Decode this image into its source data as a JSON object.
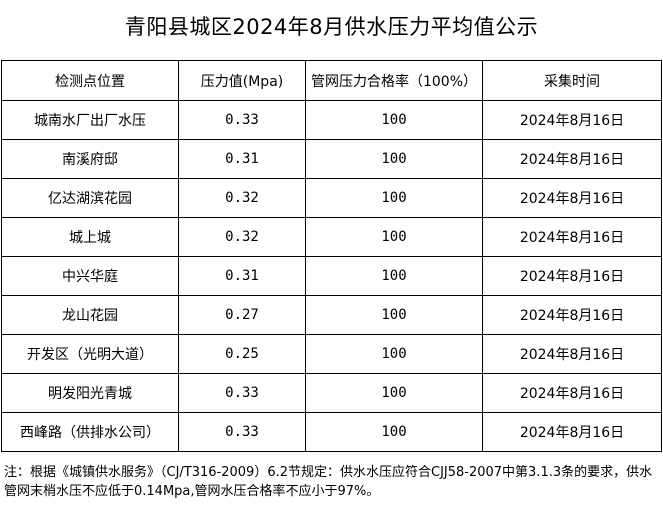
{
  "title": "青阳县城区2024年8月供水压力平均值公示",
  "table": {
    "headers": {
      "site": "检测点位置",
      "pressure": "压力值(Mpa)",
      "rate": "管网压力合格率（100%）",
      "time": "采集时间"
    },
    "rows": [
      {
        "site": "城南水厂出厂水压",
        "pressure": "0.33",
        "rate": "100",
        "time": "2024年8月16日"
      },
      {
        "site": "南溪府邸",
        "pressure": "0.31",
        "rate": "100",
        "time": "2024年8月16日"
      },
      {
        "site": "亿达湖滨花园",
        "pressure": "0.32",
        "rate": "100",
        "time": "2024年8月16日"
      },
      {
        "site": "城上城",
        "pressure": "0.32",
        "rate": "100",
        "time": "2024年8月16日"
      },
      {
        "site": "中兴华庭",
        "pressure": "0.31",
        "rate": "100",
        "time": "2024年8月16日"
      },
      {
        "site": "龙山花园",
        "pressure": "0.27",
        "rate": "100",
        "time": "2024年8月16日"
      },
      {
        "site": "开发区（光明大道）",
        "pressure": "0.25",
        "rate": "100",
        "time": "2024年8月16日"
      },
      {
        "site": "明发阳光青城",
        "pressure": "0.33",
        "rate": "100",
        "time": "2024年8月16日"
      },
      {
        "site": "西峰路（供排水公司）",
        "pressure": "0.33",
        "rate": "100",
        "time": "2024年8月16日"
      }
    ]
  },
  "note": "注：根据《城镇供水服务》（CJ/T316-2009）6.2节规定：供水水压应符合CJJ58-2007中第3.1.3条的要求，供水管网末梢水压不应低于0.14Mpa,管网水压合格率不应小于97%。"
}
